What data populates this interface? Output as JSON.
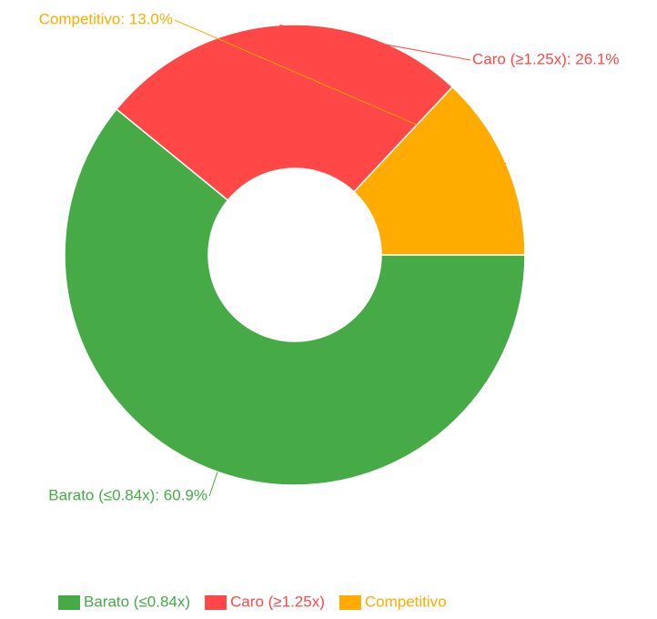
{
  "chart_data": {
    "type": "donut",
    "categories": [
      "Barato (≤0.84x)",
      "Caro (≥1.25x)",
      "Competitivo"
    ],
    "values": [
      60.9,
      26.1,
      13.0
    ],
    "value_labels": [
      "Barato (≤0.84x): 60.9%",
      "Caro (≥1.25x): 26.1%",
      "Competitivo: 13.0%"
    ],
    "colors": [
      "#46ab46",
      "#ff4747",
      "#ffab00"
    ],
    "legend": "bottom"
  }
}
